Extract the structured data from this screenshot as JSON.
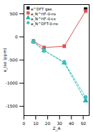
{
  "chart_data": {
    "type": "line",
    "x_label": "Z_A",
    "y_label": "a_iso (ppm)",
    "x": [
      8,
      17,
      34,
      52
    ],
    "series": [
      {
        "name": "a^DFT gas",
        "color": "#000000",
        "marker": "square",
        "type": "scatter",
        "values": [
          null,
          null,
          null,
          600
        ]
      },
      {
        "name": "a_N^HF-0-ns",
        "color": "#e05050",
        "marker": "square",
        "line_style": "solid",
        "values": [
          -90,
          -230,
          -200,
          560
        ]
      },
      {
        "name": "a_N^HF-0-cs",
        "color": "#20b0b0",
        "marker": "triangle",
        "line_style": "dashed",
        "values": [
          -100,
          -290,
          -560,
          -1380
        ]
      },
      {
        "name": "a_N^DFT-0-ns",
        "color": "#40c0c0",
        "marker": "circle",
        "line_style": "dashed",
        "values": [
          -110,
          -300,
          -540,
          -1300
        ]
      }
    ],
    "xlim": [
      0,
      55
    ],
    "xticks": [
      0,
      10,
      20,
      30,
      40,
      50
    ],
    "ylim": [
      -1700,
      700
    ],
    "yticks": [
      -1500,
      -1000,
      -500,
      0,
      500
    ],
    "legend": "top-left"
  }
}
